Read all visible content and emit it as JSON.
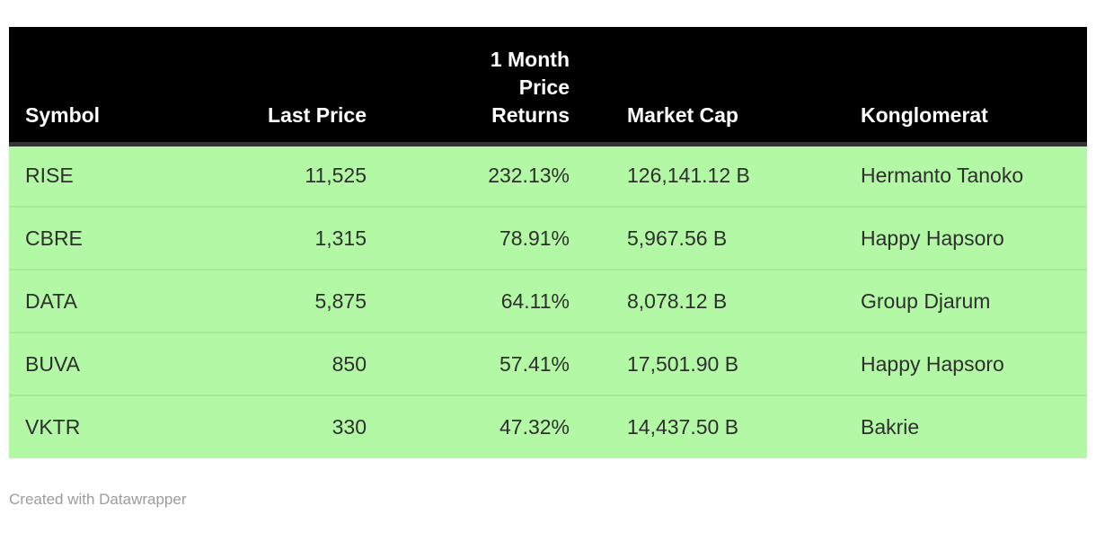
{
  "table": {
    "columns": [
      {
        "label": "Symbol",
        "align": "left"
      },
      {
        "label": "Last Price",
        "align": "right"
      },
      {
        "label": "1 Month\nPrice\nReturns",
        "align": "right"
      },
      {
        "label": "Market Cap",
        "align": "left"
      },
      {
        "label": "Konglomerat",
        "align": "left"
      }
    ],
    "rows": [
      [
        "RISE",
        "11,525",
        "232.13%",
        "126,141.12 B",
        "Hermanto Tanoko"
      ],
      [
        "CBRE",
        "1,315",
        "78.91%",
        "5,967.56 B",
        "Happy Hapsoro"
      ],
      [
        "DATA",
        "5,875",
        "64.11%",
        "8,078.12 B",
        "Group Djarum"
      ],
      [
        "BUVA",
        "850",
        "57.41%",
        "17,501.90 B",
        "Happy Hapsoro"
      ],
      [
        "VKTR",
        "330",
        "47.32%",
        "14,437.50 B",
        "Bakrie"
      ]
    ]
  },
  "footer": {
    "credit": "Created with Datawrapper"
  },
  "colors": {
    "header_bg": "#000000",
    "header_text": "#ffffff",
    "header_border": "#333333",
    "row_bg": "#b3f8a5",
    "row_divider": "#a6e999",
    "cell_text": "#2f2f2f",
    "credit_text": "#9b9b9b",
    "page_bg": "#ffffff"
  }
}
